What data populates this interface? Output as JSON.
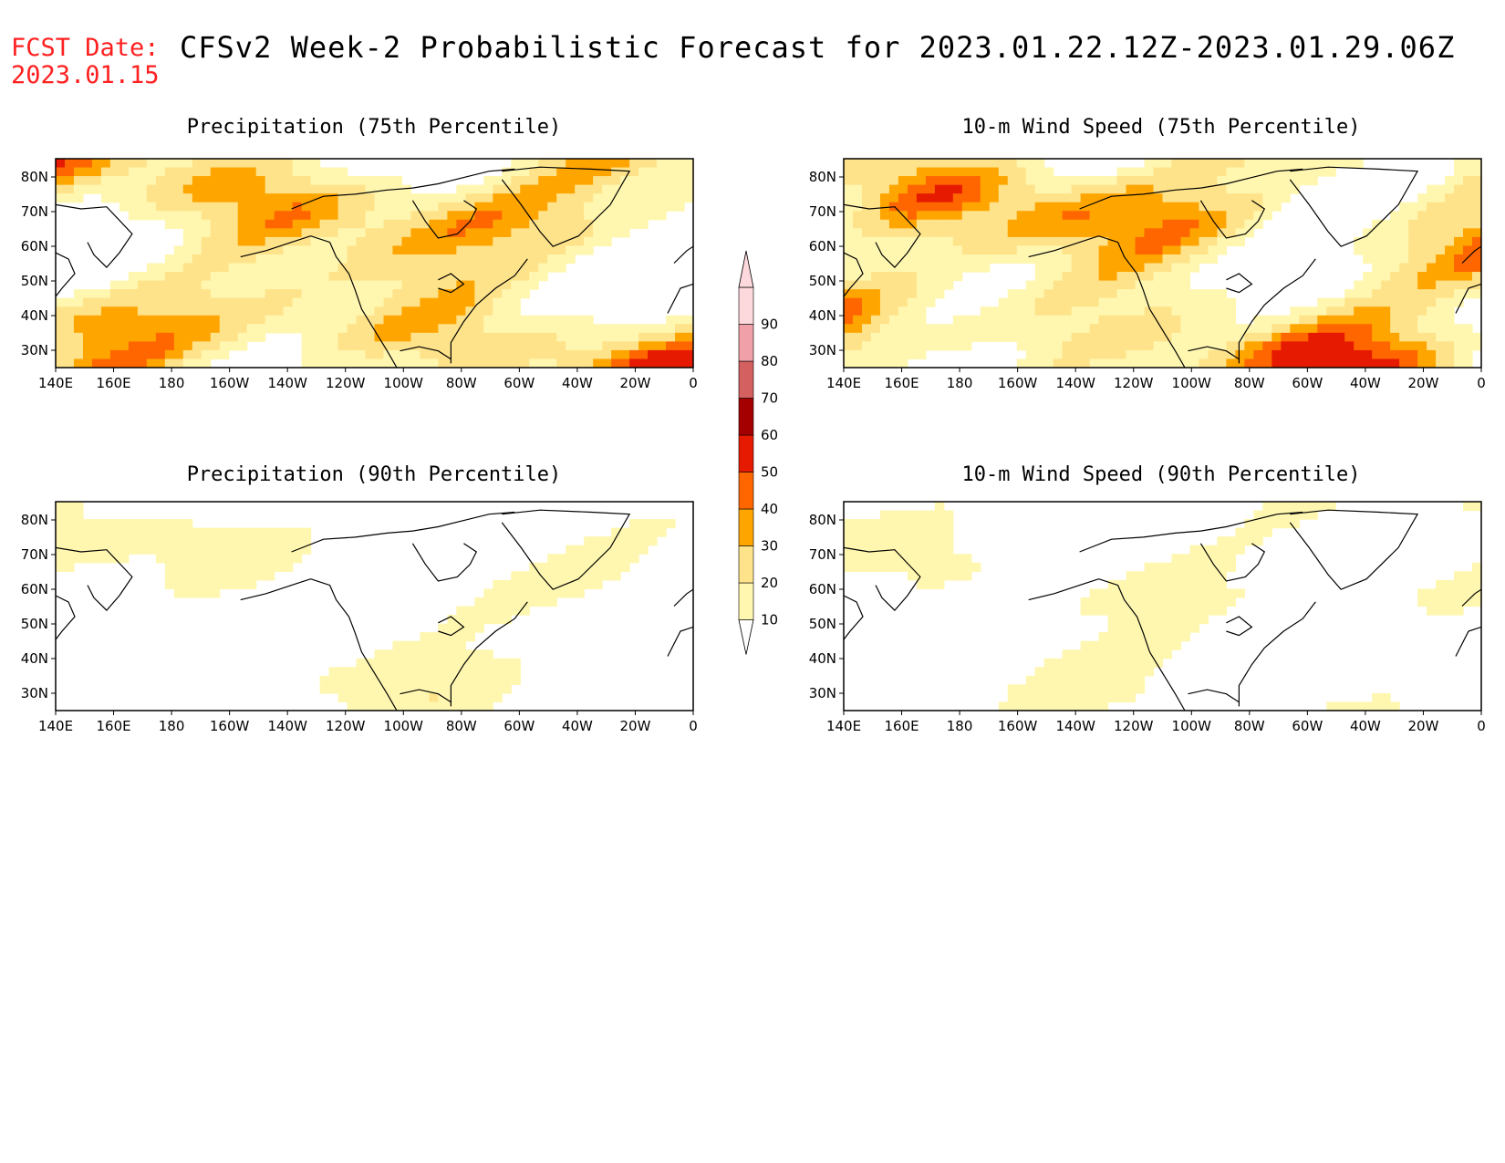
{
  "header": {
    "fcst_date_label": "FCST Date:",
    "fcst_date_value": "2023.01.15",
    "title": "CFSv2 Week-2 Probabilistic Forecast for 2023.01.22.12Z-2023.01.29.06Z"
  },
  "lon_ticks": [
    "140E",
    "160E",
    "180",
    "160W",
    "140W",
    "120W",
    "100W",
    "80W",
    "60W",
    "40W",
    "20W",
    "0"
  ],
  "lat_ticks": [
    "80N",
    "70N",
    "60N",
    "50N",
    "40N",
    "30N"
  ],
  "panels": [
    {
      "title": "Precipitation (75th Percentile)",
      "intensity": 1.2
    },
    {
      "title": "10-m Wind Speed (75th Percentile)",
      "intensity": 1.25
    },
    {
      "title": "Precipitation (90th Percentile)",
      "intensity": 0.55
    },
    {
      "title": "10-m Wind Speed (90th Percentile)",
      "intensity": 0.5
    }
  ],
  "colorbar": {
    "levels": [
      "10",
      "20",
      "30",
      "40",
      "50",
      "60",
      "70",
      "80",
      "90"
    ],
    "colors": [
      "#ffffff",
      "#fff7b0",
      "#ffe38a",
      "#ffa500",
      "#ff6600",
      "#e61a00",
      "#a50000",
      "#d46060",
      "#f0a0a8",
      "#fdd8dc"
    ]
  }
}
